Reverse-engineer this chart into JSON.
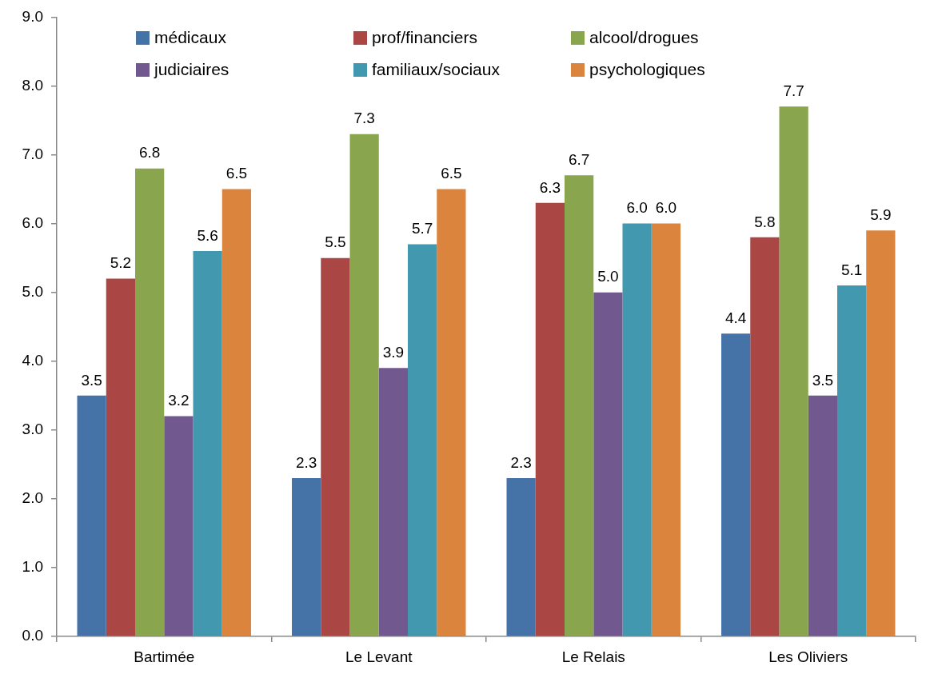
{
  "chart_data": {
    "type": "bar",
    "categories": [
      "Bartimée",
      "Le Levant",
      "Le Relais",
      "Les Oliviers"
    ],
    "series": [
      {
        "name": "médicaux",
        "color": "#4572a7",
        "values": [
          3.5,
          2.3,
          2.3,
          4.4
        ],
        "value_labels": [
          "3.5",
          "2.3",
          "2.3",
          "4.4"
        ]
      },
      {
        "name": "prof/financiers",
        "color": "#aa4643",
        "values": [
          5.2,
          5.5,
          6.3,
          5.8
        ],
        "value_labels": [
          "5.2",
          "5.5",
          "6.3",
          "5.8"
        ]
      },
      {
        "name": "alcool/drogues",
        "color": "#89a54e",
        "values": [
          6.8,
          7.3,
          6.7,
          7.7
        ],
        "value_labels": [
          "6.8",
          "7.3",
          "6.7",
          "7.7"
        ]
      },
      {
        "name": "judiciaires",
        "color": "#71588f",
        "values": [
          3.2,
          3.9,
          5.0,
          3.5
        ],
        "value_labels": [
          "3.2",
          "3.9",
          "5.0",
          "3.5"
        ]
      },
      {
        "name": "familiaux/sociaux",
        "color": "#4198af",
        "values": [
          5.6,
          5.7,
          6.0,
          5.1
        ],
        "value_labels": [
          "5.6",
          "5.7",
          "6.0",
          "5.1"
        ]
      },
      {
        "name": "psychologiques",
        "color": "#db843d",
        "values": [
          6.5,
          6.5,
          6.0,
          5.9
        ],
        "value_labels": [
          "6.5",
          "6.5",
          "6.0",
          "5.9"
        ]
      }
    ],
    "ylim": [
      0,
      9
    ],
    "yticks": [
      {
        "value": 0,
        "label": "0.0"
      },
      {
        "value": 1,
        "label": "1.0"
      },
      {
        "value": 2,
        "label": "2.0"
      },
      {
        "value": 3,
        "label": "3.0"
      },
      {
        "value": 4,
        "label": "4.0"
      },
      {
        "value": 5,
        "label": "5.0"
      },
      {
        "value": 6,
        "label": "6.0"
      },
      {
        "value": 7,
        "label": "7.0"
      },
      {
        "value": 8,
        "label": "8.0"
      },
      {
        "value": 9,
        "label": "9.0"
      }
    ],
    "grid": false,
    "legend": "top"
  }
}
